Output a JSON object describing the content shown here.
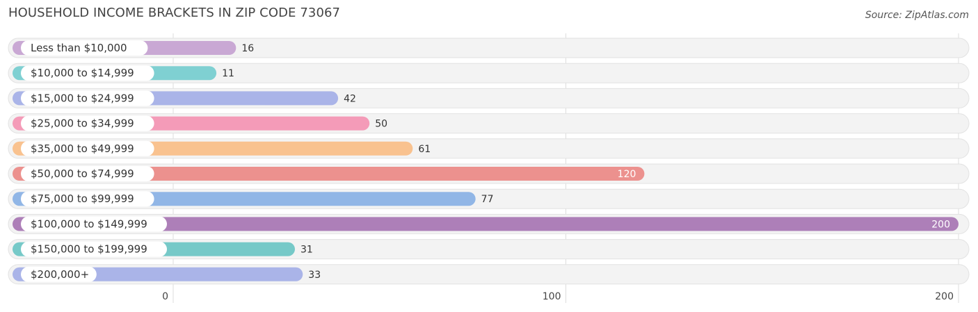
{
  "header": {
    "title": "HOUSEHOLD INCOME BRACKETS IN ZIP CODE 73067",
    "source": "Source: ZipAtlas.com"
  },
  "chart_data": {
    "type": "bar",
    "orientation": "horizontal",
    "categories": [
      "Less than $10,000",
      "$10,000 to $14,999",
      "$15,000 to $24,999",
      "$25,000 to $34,999",
      "$35,000 to $49,999",
      "$50,000 to $74,999",
      "$75,000 to $99,999",
      "$100,000 to $149,999",
      "$150,000 to $199,999",
      "$200,000+"
    ],
    "values": [
      16,
      11,
      42,
      50,
      61,
      120,
      77,
      200,
      31,
      33
    ],
    "colors": [
      "#c9a8d4",
      "#7fd0d2",
      "#aab4e8",
      "#f49bb8",
      "#f9c28f",
      "#ec918e",
      "#91b6e6",
      "#ad7fb8",
      "#76c9c8",
      "#aab4e8"
    ],
    "xlim": [
      0,
      200
    ],
    "xticks": [
      0,
      100,
      200
    ],
    "grid": true
  }
}
